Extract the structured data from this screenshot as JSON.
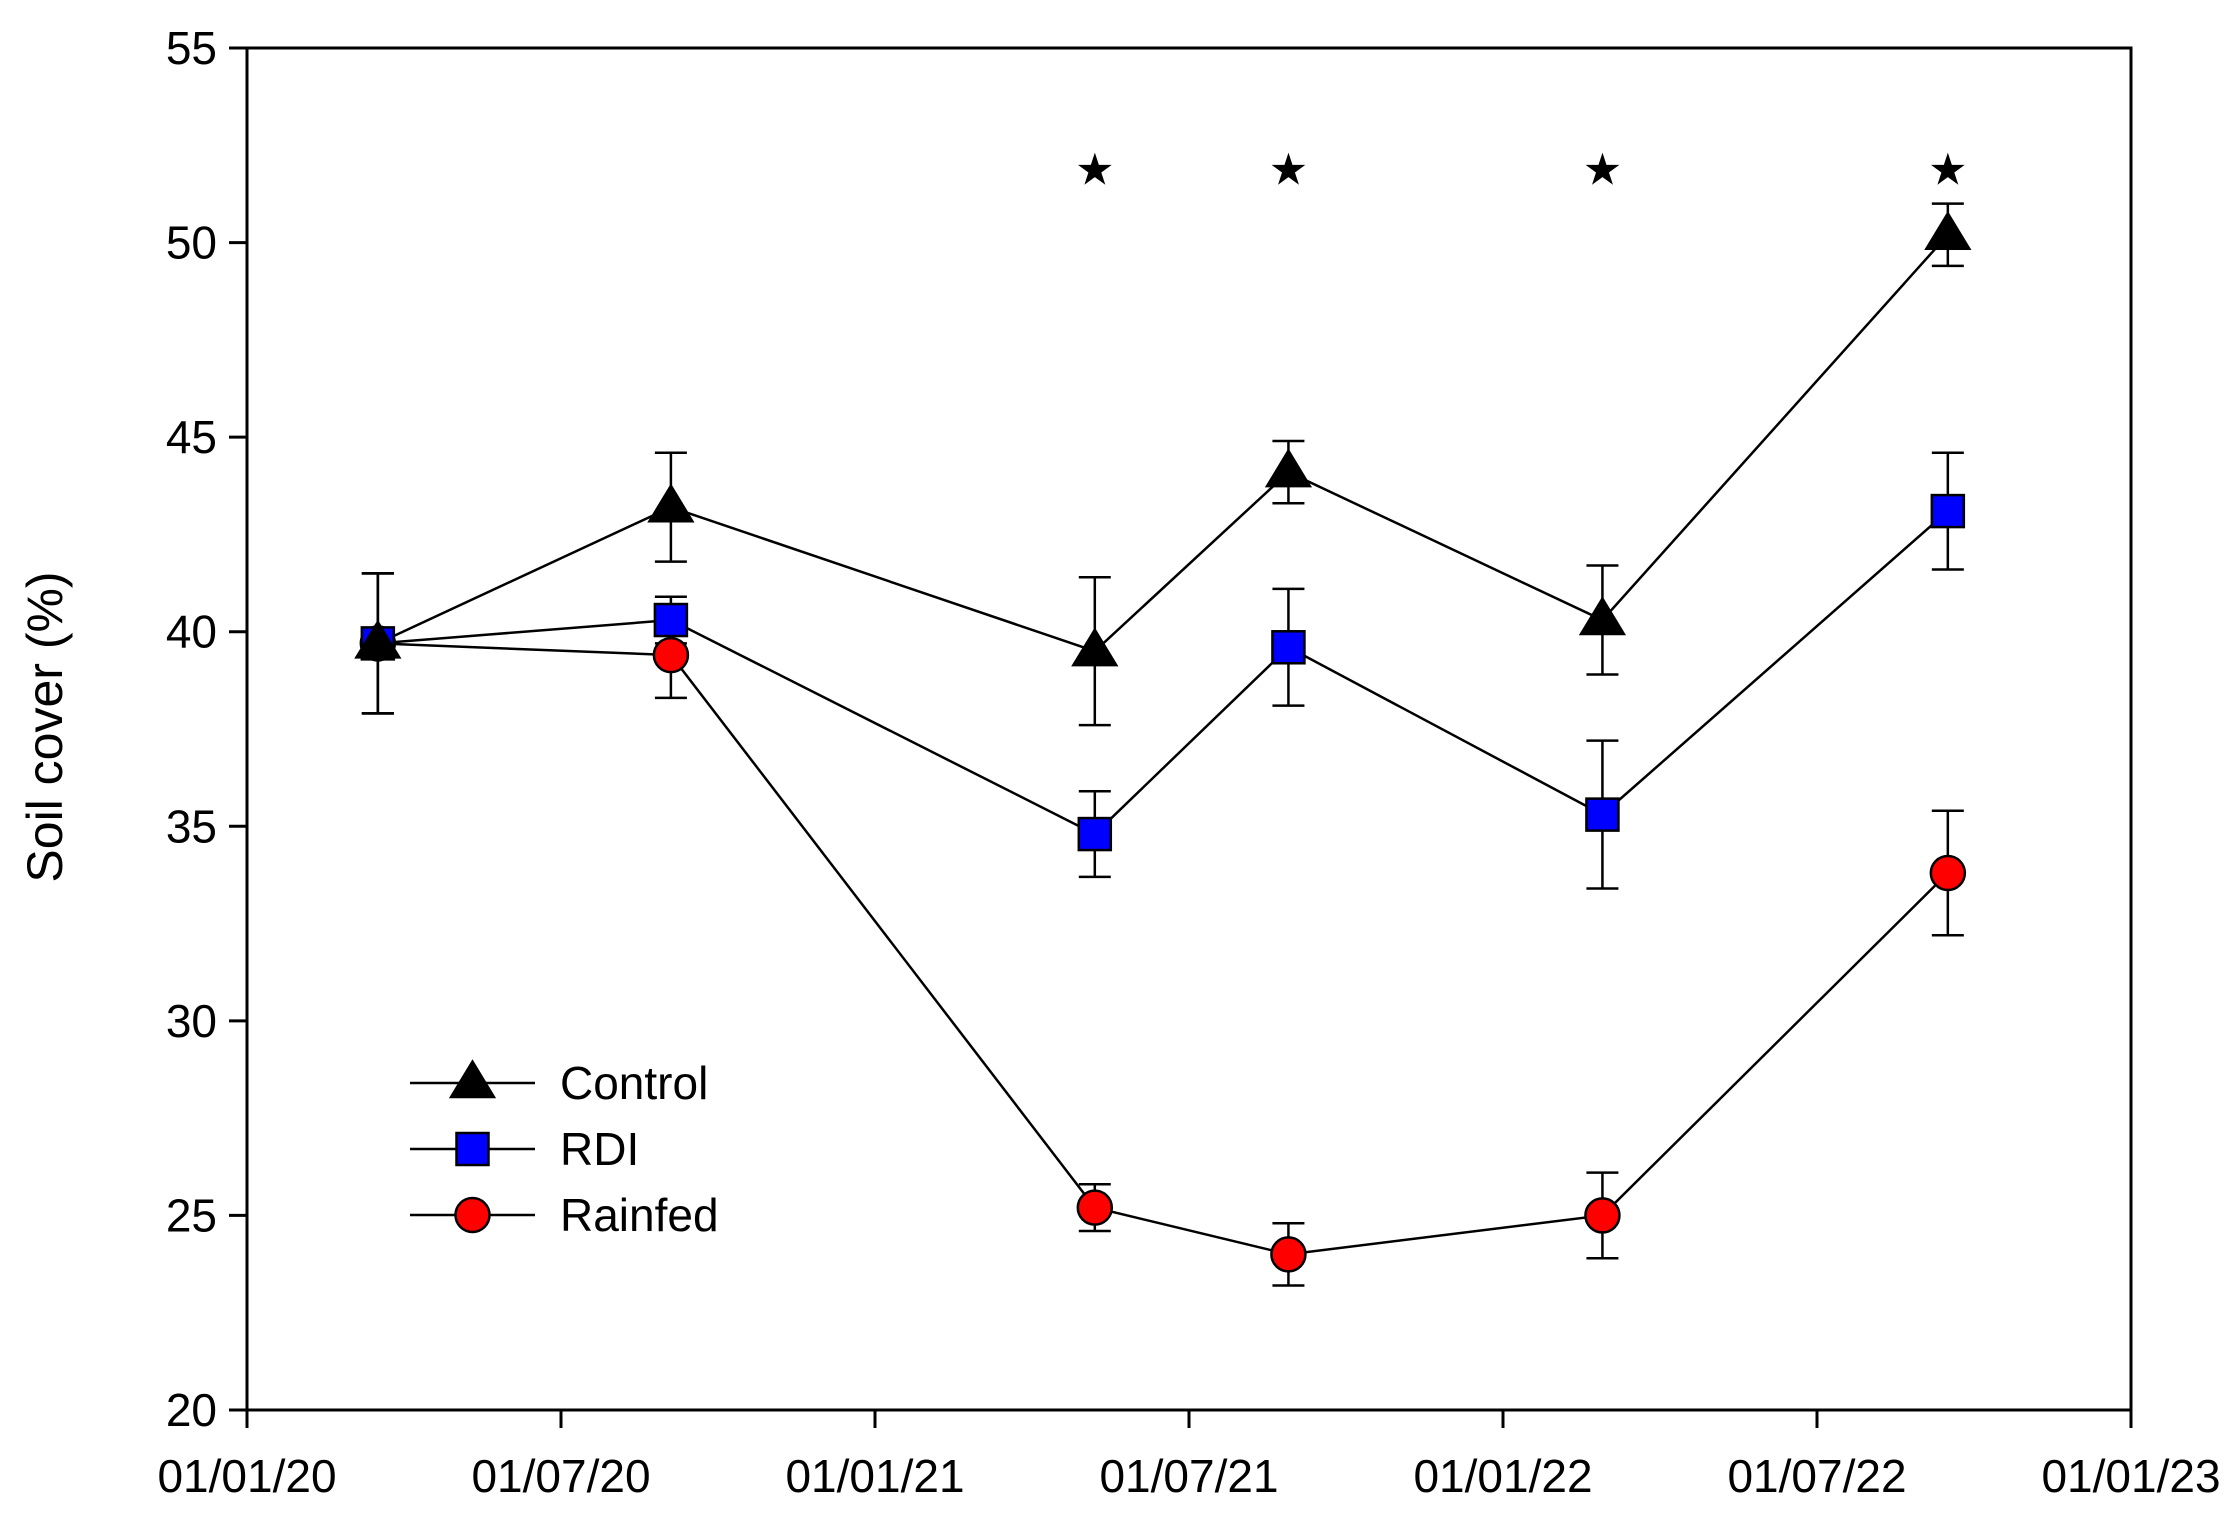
{
  "chart_data": {
    "type": "line",
    "title": "",
    "xlabel": "",
    "ylabel": "Soil cover (%)",
    "ylim": [
      20,
      55
    ],
    "xlim_months": [
      0,
      36
    ],
    "x_ticks": [
      {
        "label": "01/01/20",
        "month": 0
      },
      {
        "label": "01/07/20",
        "month": 6
      },
      {
        "label": "01/01/21",
        "month": 12
      },
      {
        "label": "01/07/21",
        "month": 18
      },
      {
        "label": "01/01/22",
        "month": 24
      },
      {
        "label": "01/07/22",
        "month": 30
      },
      {
        "label": "01/01/23",
        "month": 36
      }
    ],
    "y_ticks": [
      20,
      25,
      30,
      35,
      40,
      45,
      50,
      55
    ],
    "x_months": [
      2.5,
      8.1,
      16.2,
      19.9,
      25.9,
      32.5
    ],
    "series": [
      {
        "name": "Control",
        "marker": "triangle",
        "color": "#000000",
        "values": [
          39.7,
          43.2,
          39.5,
          44.1,
          40.3,
          50.2
        ],
        "errors": [
          1.8,
          1.4,
          1.9,
          0.8,
          1.4,
          0.8
        ]
      },
      {
        "name": "RDI",
        "marker": "square",
        "color": "#0000ff",
        "values": [
          39.7,
          40.3,
          34.8,
          39.6,
          35.3,
          43.1
        ],
        "errors": [
          1.8,
          0.6,
          1.1,
          1.5,
          1.9,
          1.5
        ]
      },
      {
        "name": "Rainfed",
        "marker": "circle",
        "color": "#ff0000",
        "values": [
          39.7,
          39.4,
          25.2,
          24.0,
          25.0,
          33.8
        ],
        "errors": [
          1.8,
          1.1,
          0.6,
          0.8,
          1.1,
          1.6
        ]
      }
    ],
    "significance": {
      "symbol": "★",
      "y_value": 51.9,
      "x_months": [
        16.2,
        19.9,
        25.9,
        32.5
      ]
    },
    "legend": {
      "placement": "lower-left",
      "entries": [
        "Control",
        "RDI",
        "Rainfed"
      ]
    }
  }
}
